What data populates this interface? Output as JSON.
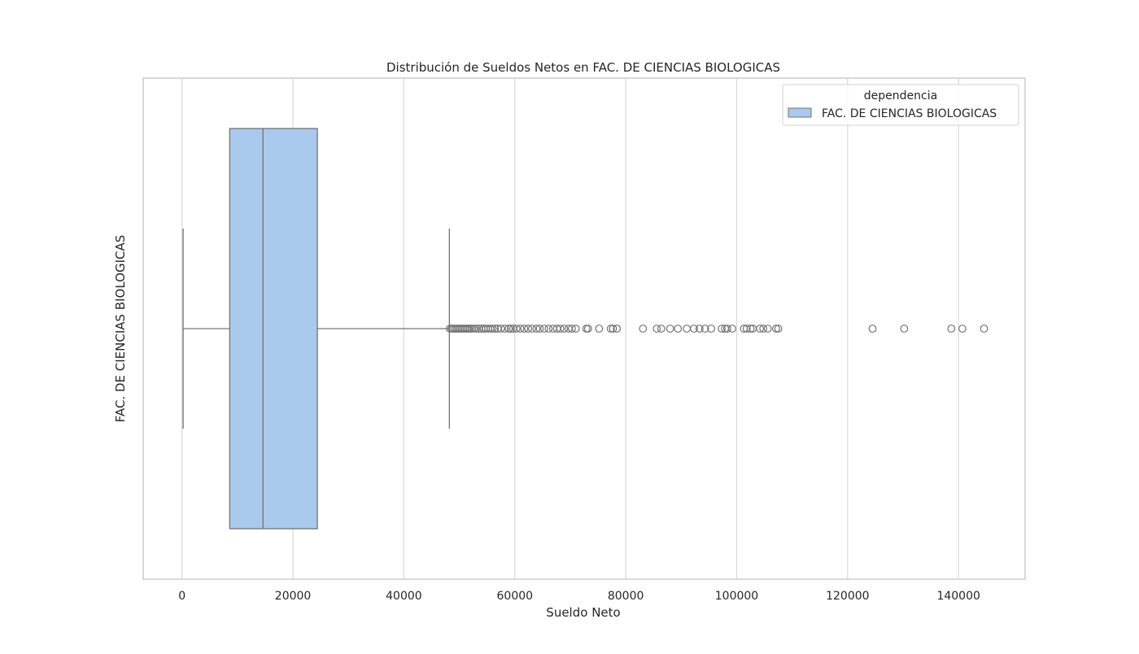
{
  "chart_data": {
    "type": "boxplot",
    "title": "Distribución de Sueldos Netos en FAC. DE CIENCIAS BIOLOGICAS",
    "xlabel": "Sueldo Neto",
    "ylabel": "FAC. DE CIENCIAS BIOLOGICAS",
    "xlim": [
      -7000,
      152000
    ],
    "x_ticks": [
      0,
      20000,
      40000,
      60000,
      80000,
      100000,
      120000,
      140000
    ],
    "x_tick_labels": [
      "0",
      "20000",
      "40000",
      "60000",
      "80000",
      "100000",
      "120000",
      "140000"
    ],
    "grid": true,
    "orientation": "horizontal",
    "legend": {
      "title": "dependencia",
      "entries": [
        "FAC. DE CIENCIAS BIOLOGICAS"
      ],
      "placement": "top-right"
    },
    "colors": {
      "box_fill": "#a9c9ed",
      "line": "#737373",
      "grid": "#d9d9d9",
      "frame": "#cccccc"
    },
    "series": [
      {
        "name": "FAC. DE CIENCIAS BIOLOGICAS",
        "whisker_low": 200,
        "q1": 8600,
        "median": 14600,
        "q3": 24400,
        "whisker_high": 48200,
        "outliers": [
          48300,
          48600,
          48900,
          49200,
          49500,
          49800,
          50100,
          50400,
          50700,
          51000,
          51300,
          51600,
          51900,
          52200,
          52600,
          53000,
          53500,
          54000,
          54400,
          54800,
          55200,
          55600,
          56000,
          56400,
          56900,
          57500,
          58200,
          58900,
          59300,
          59700,
          60300,
          61000,
          61700,
          62400,
          63100,
          63900,
          64500,
          65300,
          66100,
          66900,
          67600,
          68200,
          68900,
          69700,
          70300,
          71000,
          72900,
          73200,
          75200,
          77300,
          77700,
          78400,
          83100,
          85600,
          86400,
          88000,
          89400,
          91000,
          92300,
          93300,
          94300,
          95400,
          97300,
          97900,
          98300,
          99200,
          101300,
          101800,
          102500,
          102900,
          104200,
          104800,
          105600,
          107100,
          107500,
          124500,
          130200,
          138700,
          140700,
          144600
        ]
      }
    ]
  }
}
